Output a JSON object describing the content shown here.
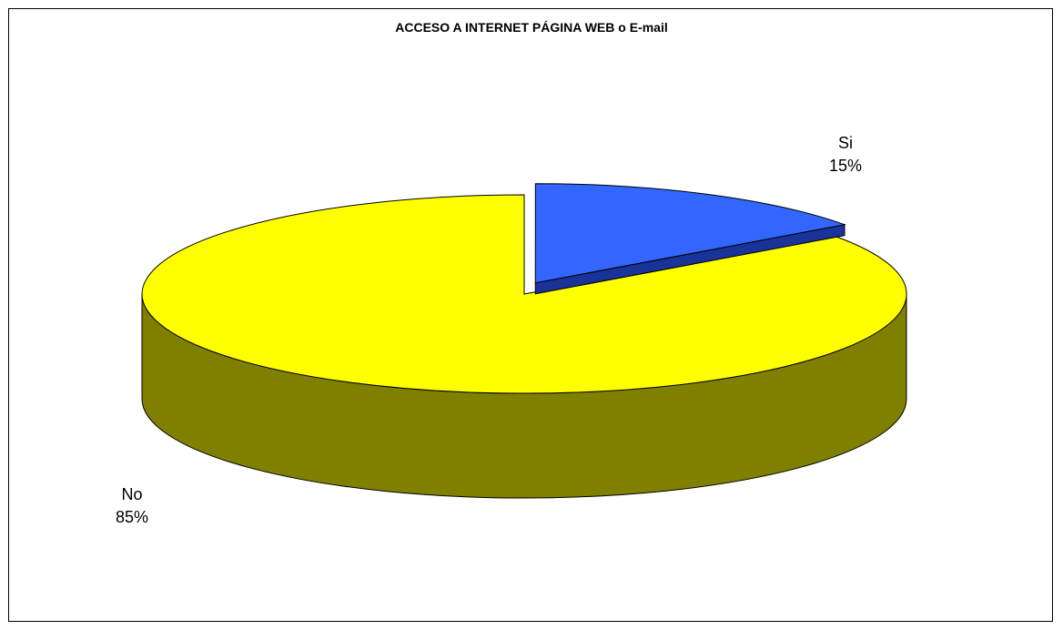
{
  "chart_data": {
    "type": "pie",
    "title": "ACCESO A INTERNET PÁGINA WEB o E-mail",
    "slices": [
      {
        "label": "Si",
        "value": 15,
        "display": "15%",
        "color": "#3366FF",
        "side_color": "#1A3399"
      },
      {
        "label": "No",
        "value": 85,
        "display": "85%",
        "color": "#FFFF00",
        "side_color": "#808000"
      }
    ],
    "style": "3d",
    "legend": "none"
  }
}
